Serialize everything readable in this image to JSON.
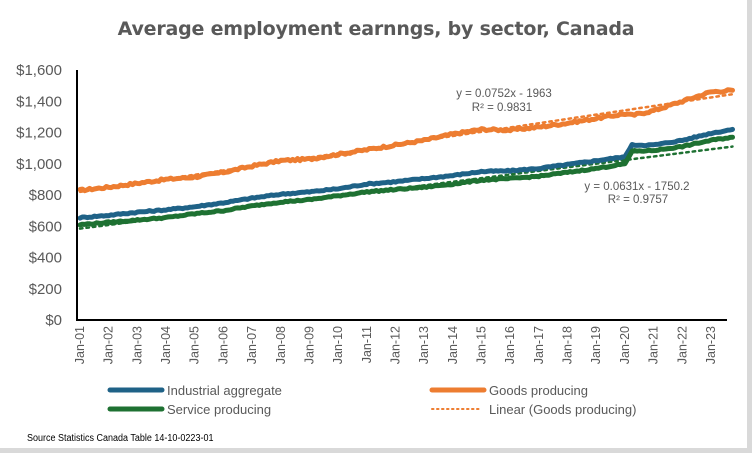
{
  "chart_data": {
    "type": "line",
    "title": "Average employment earnngs, by sector, Canada",
    "xlabel": "",
    "ylabel": "",
    "ylim": [
      0,
      1600
    ],
    "yticks": [
      "$0",
      "$200",
      "$400",
      "$600",
      "$800",
      "$1,000",
      "$1,200",
      "$1,400",
      "$1,600"
    ],
    "ytick_values": [
      0,
      200,
      400,
      600,
      800,
      1000,
      1200,
      1400,
      1600
    ],
    "xticks": [
      "Jan-01",
      "Jan-02",
      "Jan-03",
      "Jan-04",
      "Jan-05",
      "Jan-06",
      "Jan-07",
      "Jan-08",
      "Jan-09",
      "Jan-10",
      "Jan-11",
      "Jan-12",
      "Jan-13",
      "Jan-14",
      "Jan-15",
      "Jan-16",
      "Jan-17",
      "Jan-18",
      "Jan-19",
      "Jan-20",
      "Jan-21",
      "Jan-22",
      "Jan-23"
    ],
    "x_years": [
      2001,
      2002,
      2003,
      2004,
      2005,
      2006,
      2007,
      2008,
      2009,
      2010,
      2011,
      2012,
      2013,
      2014,
      2015,
      2016,
      2017,
      2018,
      2019,
      2020,
      2020.25,
      2021,
      2022,
      2023,
      2023.75
    ],
    "series": [
      {
        "name": "Goods producing",
        "color": "#ed7d31",
        "values": [
          830,
          850,
          875,
          900,
          915,
          945,
          985,
          1020,
          1030,
          1060,
          1090,
          1120,
          1150,
          1190,
          1220,
          1215,
          1235,
          1260,
          1290,
          1320,
          1310,
          1340,
          1400,
          1460,
          1470
        ]
      },
      {
        "name": "Industrial aggregate",
        "color": "#1f6287",
        "values": [
          655,
          670,
          690,
          705,
          725,
          750,
          780,
          805,
          820,
          840,
          870,
          885,
          905,
          925,
          950,
          955,
          970,
          995,
          1020,
          1045,
          1120,
          1120,
          1150,
          1195,
          1220
        ]
      },
      {
        "name": "Service producing",
        "color": "#1e7132",
        "values": [
          610,
          625,
          640,
          655,
          680,
          700,
          730,
          755,
          770,
          795,
          820,
          835,
          850,
          870,
          895,
          905,
          920,
          945,
          970,
          1000,
          1080,
          1085,
          1110,
          1150,
          1170
        ]
      }
    ],
    "trendlines": [
      {
        "name": "Linear (Goods producing)",
        "color": "#ed7d31",
        "start": [
          2001,
          820
        ],
        "end": [
          2023.75,
          1445
        ],
        "equation": "y = 0.0752x - 1963",
        "r2": "R² = 0.9831"
      },
      {
        "name": "Linear (Service producing)",
        "color": "#1e7132",
        "start": [
          2001,
          585
        ],
        "end": [
          2023.75,
          1110
        ],
        "equation": "y = 0.0631x - 1750.2",
        "r2": "R² = 0.9757"
      }
    ],
    "legend": [
      {
        "label": "Industrial aggregate",
        "color": "#1f6287",
        "style": "solid"
      },
      {
        "label": "Goods producing",
        "color": "#ed7d31",
        "style": "solid"
      },
      {
        "label": "Service producing",
        "color": "#1e7132",
        "style": "solid"
      },
      {
        "label": "Linear (Goods producing)",
        "color": "#ed7d31",
        "style": "dotted"
      }
    ],
    "legend_position": "bottom",
    "grid": false
  },
  "source": "Source Statistics  Canada Table  14-10-0223-01"
}
